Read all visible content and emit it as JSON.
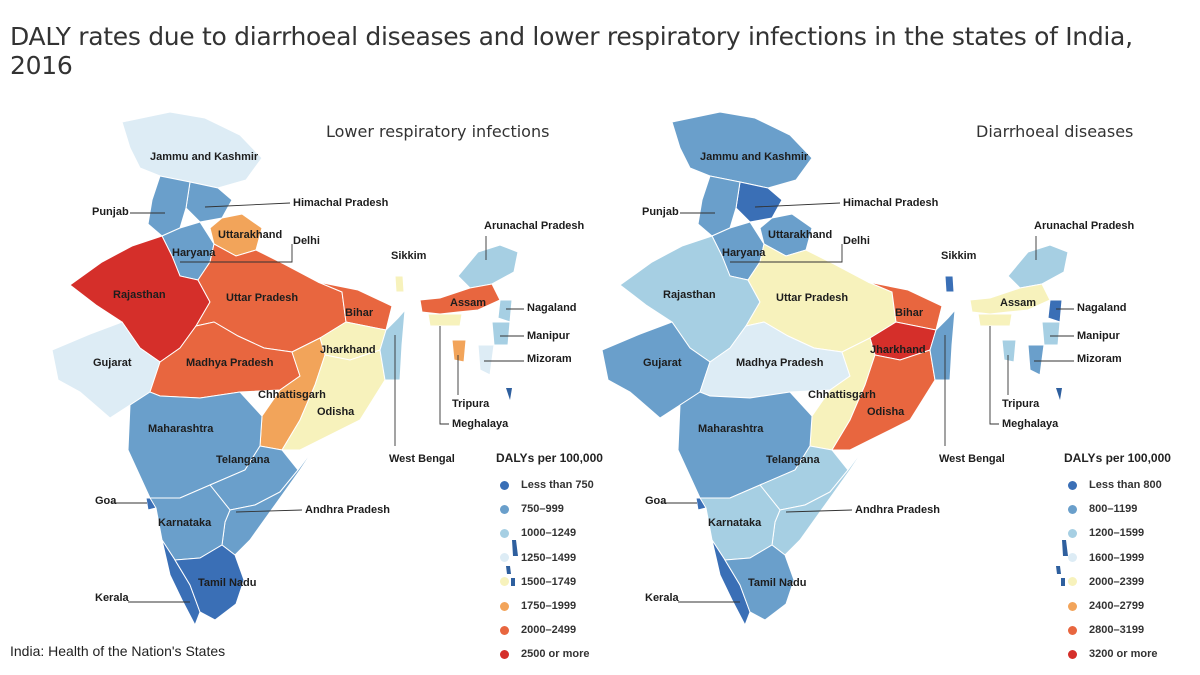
{
  "title": "DALY rates due to diarrhoeal diseases and lower respiratory infections in the states of India, 2016",
  "source": "India: Health of the Nation's States",
  "maps": [
    {
      "title": "Lower respiratory infections",
      "legend_title": "DALYs per 100,000",
      "legend": [
        {
          "label": "Less than 750",
          "color": "#3a6fb6"
        },
        {
          "label": "750–999",
          "color": "#6a9fcb"
        },
        {
          "label": "1000–1249",
          "color": "#a6cfe3"
        },
        {
          "label": "1250–1499",
          "color": "#ddecf5"
        },
        {
          "label": "1500–1749",
          "color": "#f7f2bc"
        },
        {
          "label": "1750–1999",
          "color": "#f2a45a"
        },
        {
          "label": "2000–2499",
          "color": "#e8663f"
        },
        {
          "label": "2500 or more",
          "color": "#d52f2a"
        }
      ],
      "states": {
        "jammu_kashmir": {
          "label": "Jammu and Kashmir",
          "color": "#ddecf5"
        },
        "himachal": {
          "label": "Himachal Pradesh",
          "color": "#6a9fcb"
        },
        "punjab": {
          "label": "Punjab",
          "color": "#6a9fcb"
        },
        "uttarakhand": {
          "label": "Uttarakhand",
          "color": "#f2a45a"
        },
        "haryana": {
          "label": "Haryana",
          "color": "#6a9fcb"
        },
        "delhi": {
          "label": "Delhi",
          "color": "#a6cfe3"
        },
        "rajasthan": {
          "label": "Rajasthan",
          "color": "#d52f2a"
        },
        "uttar_pradesh": {
          "label": "Uttar Pradesh",
          "color": "#e8663f"
        },
        "bihar": {
          "label": "Bihar",
          "color": "#e8663f"
        },
        "gujarat": {
          "label": "Gujarat",
          "color": "#ddecf5"
        },
        "madhya_pradesh": {
          "label": "Madhya Pradesh",
          "color": "#e8663f"
        },
        "jharkhand": {
          "label": "Jharkhand",
          "color": "#f7f2bc"
        },
        "chhattisgarh": {
          "label": "Chhattisgarh",
          "color": "#f2a45a"
        },
        "odisha": {
          "label": "Odisha",
          "color": "#f7f2bc"
        },
        "west_bengal": {
          "label": "West Bengal",
          "color": "#a6cfe3"
        },
        "maharashtra": {
          "label": "Maharashtra",
          "color": "#6a9fcb"
        },
        "telangana": {
          "label": "Telangana",
          "color": "#6a9fcb"
        },
        "andhra_pradesh": {
          "label": "Andhra Pradesh",
          "color": "#6a9fcb"
        },
        "goa": {
          "label": "Goa",
          "color": "#3a6fb6"
        },
        "karnataka": {
          "label": "Karnataka",
          "color": "#6a9fcb"
        },
        "kerala": {
          "label": "Kerala",
          "color": "#3a6fb6"
        },
        "tamil_nadu": {
          "label": "Tamil Nadu",
          "color": "#3a6fb6"
        },
        "sikkim": {
          "label": "Sikkim",
          "color": "#f7f2bc"
        },
        "arunachal": {
          "label": "Arunachal Pradesh",
          "color": "#a6cfe3"
        },
        "assam": {
          "label": "Assam",
          "color": "#e8663f"
        },
        "nagaland": {
          "label": "Nagaland",
          "color": "#a6cfe3"
        },
        "manipur": {
          "label": "Manipur",
          "color": "#a6cfe3"
        },
        "mizoram": {
          "label": "Mizoram",
          "color": "#ddecf5"
        },
        "tripura": {
          "label": "Tripura",
          "color": "#f2a45a"
        },
        "meghalaya": {
          "label": "Meghalaya",
          "color": "#f7f2bc"
        }
      }
    },
    {
      "title": "Diarrhoeal diseases",
      "legend_title": "DALYs per 100,000",
      "legend": [
        {
          "label": "Less than 800",
          "color": "#3a6fb6"
        },
        {
          "label": "800–1199",
          "color": "#6a9fcb"
        },
        {
          "label": "1200–1599",
          "color": "#a6cfe3"
        },
        {
          "label": "1600–1999",
          "color": "#ddecf5"
        },
        {
          "label": "2000–2399",
          "color": "#f7f2bc"
        },
        {
          "label": "2400–2799",
          "color": "#f2a45a"
        },
        {
          "label": "2800–3199",
          "color": "#e8663f"
        },
        {
          "label": "3200 or more",
          "color": "#d52f2a"
        }
      ],
      "states": {
        "jammu_kashmir": {
          "label": "Jammu and Kashmir",
          "color": "#6a9fcb"
        },
        "himachal": {
          "label": "Himachal Pradesh",
          "color": "#3a6fb6"
        },
        "punjab": {
          "label": "Punjab",
          "color": "#6a9fcb"
        },
        "uttarakhand": {
          "label": "Uttarakhand",
          "color": "#6a9fcb"
        },
        "haryana": {
          "label": "Haryana",
          "color": "#6a9fcb"
        },
        "delhi": {
          "label": "Delhi",
          "color": "#f7f2bc"
        },
        "rajasthan": {
          "label": "Rajasthan",
          "color": "#a6cfe3"
        },
        "uttar_pradesh": {
          "label": "Uttar Pradesh",
          "color": "#f7f2bc"
        },
        "bihar": {
          "label": "Bihar",
          "color": "#e8663f"
        },
        "gujarat": {
          "label": "Gujarat",
          "color": "#6a9fcb"
        },
        "madhya_pradesh": {
          "label": "Madhya Pradesh",
          "color": "#ddecf5"
        },
        "jharkhand": {
          "label": "Jharkhand",
          "color": "#d52f2a"
        },
        "chhattisgarh": {
          "label": "Chhattisgarh",
          "color": "#f7f2bc"
        },
        "odisha": {
          "label": "Odisha",
          "color": "#e8663f"
        },
        "west_bengal": {
          "label": "West Bengal",
          "color": "#6a9fcb"
        },
        "maharashtra": {
          "label": "Maharashtra",
          "color": "#6a9fcb"
        },
        "telangana": {
          "label": "Telangana",
          "color": "#a6cfe3"
        },
        "andhra_pradesh": {
          "label": "Andhra Pradesh",
          "color": "#a6cfe3"
        },
        "goa": {
          "label": "Goa",
          "color": "#3a6fb6"
        },
        "karnataka": {
          "label": "Karnataka",
          "color": "#a6cfe3"
        },
        "kerala": {
          "label": "Kerala",
          "color": "#3a6fb6"
        },
        "tamil_nadu": {
          "label": "Tamil Nadu",
          "color": "#6a9fcb"
        },
        "sikkim": {
          "label": "Sikkim",
          "color": "#3a6fb6"
        },
        "arunachal": {
          "label": "Arunachal Pradesh",
          "color": "#a6cfe3"
        },
        "assam": {
          "label": "Assam",
          "color": "#f7f2bc"
        },
        "nagaland": {
          "label": "Nagaland",
          "color": "#3a6fb6"
        },
        "manipur": {
          "label": "Manipur",
          "color": "#a6cfe3"
        },
        "mizoram": {
          "label": "Mizoram",
          "color": "#6a9fcb"
        },
        "tripura": {
          "label": "Tripura",
          "color": "#a6cfe3"
        },
        "meghalaya": {
          "label": "Meghalaya",
          "color": "#f7f2bc"
        }
      }
    }
  ]
}
